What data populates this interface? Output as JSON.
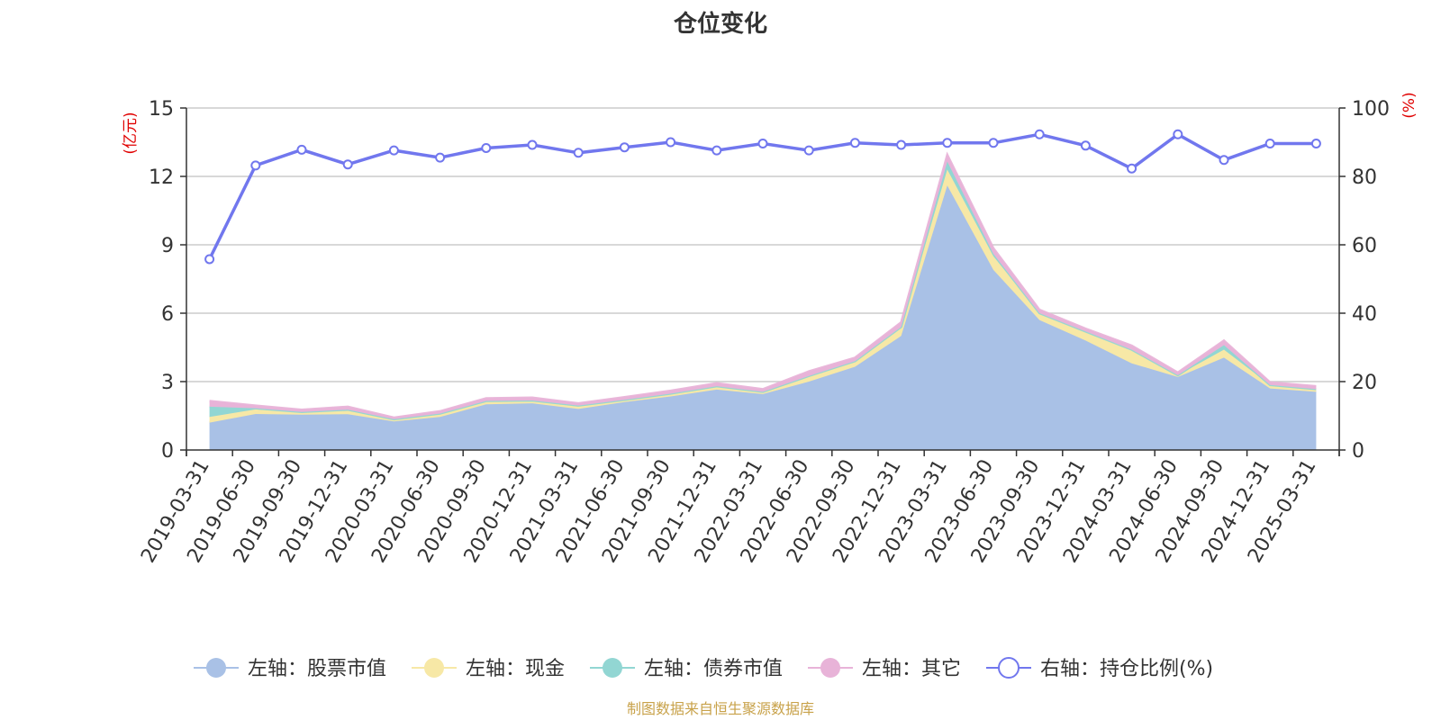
{
  "chart_data": {
    "type": "area",
    "title": "仓位变化",
    "left_axis_unit": "(亿元)",
    "right_axis_unit": "(%)",
    "ylim_left": [
      0,
      15
    ],
    "yticks_left": [
      "0",
      "3",
      "6",
      "9",
      "12",
      "15"
    ],
    "ylim_right": [
      0,
      100
    ],
    "yticks_right": [
      "0",
      "20",
      "40",
      "60",
      "80",
      "100"
    ],
    "grid": true,
    "legend_position": "bottom",
    "categories": [
      "2019-03-31",
      "2019-06-30",
      "2019-09-30",
      "2019-12-31",
      "2020-03-31",
      "2020-06-30",
      "2020-09-30",
      "2020-12-31",
      "2021-03-31",
      "2021-06-30",
      "2021-09-30",
      "2021-12-31",
      "2022-03-31",
      "2022-06-30",
      "2022-09-30",
      "2022-12-31",
      "2023-03-31",
      "2023-06-30",
      "2023-09-30",
      "2023-12-31",
      "2024-03-31",
      "2024-06-30",
      "2024-09-30",
      "2024-12-31",
      "2025-03-31"
    ],
    "series": [
      {
        "name": "左轴：股票市值",
        "axis": "left",
        "stacked": true,
        "color": "#a9c1e6",
        "values": [
          1.2,
          1.58,
          1.55,
          1.57,
          1.25,
          1.45,
          2.0,
          2.05,
          1.8,
          2.1,
          2.35,
          2.65,
          2.45,
          3.0,
          3.65,
          5.0,
          11.6,
          7.9,
          5.7,
          4.8,
          3.8,
          3.2,
          4.05,
          2.7,
          2.55
        ]
      },
      {
        "name": "左轴：现金",
        "axis": "left",
        "stacked": true,
        "color": "#f7e8a6",
        "values": [
          0.25,
          0.2,
          0.1,
          0.15,
          0.1,
          0.15,
          0.15,
          0.12,
          0.15,
          0.1,
          0.12,
          0.15,
          0.1,
          0.25,
          0.25,
          0.4,
          0.7,
          0.6,
          0.3,
          0.4,
          0.6,
          0.08,
          0.35,
          0.15,
          0.12
        ]
      },
      {
        "name": "左轴：债券市值",
        "axis": "left",
        "stacked": true,
        "color": "#92d6d3",
        "values": [
          0.45,
          0.05,
          0.02,
          0.05,
          0.0,
          0.0,
          0.0,
          0.0,
          0.0,
          0.0,
          0.0,
          0.0,
          0.0,
          0.0,
          0.0,
          0.0,
          0.35,
          0.1,
          0.0,
          0.0,
          0.0,
          0.0,
          0.2,
          0.0,
          0.0
        ]
      },
      {
        "name": "左轴：其它",
        "axis": "left",
        "stacked": true,
        "color": "#e8b3d8",
        "values": [
          0.25,
          0.12,
          0.1,
          0.13,
          0.07,
          0.1,
          0.12,
          0.13,
          0.1,
          0.12,
          0.13,
          0.13,
          0.12,
          0.2,
          0.15,
          0.2,
          0.3,
          0.25,
          0.15,
          0.12,
          0.18,
          0.12,
          0.2,
          0.12,
          0.13
        ]
      },
      {
        "name": "右轴：持仓比例(%)",
        "axis": "right",
        "type": "line",
        "color": "#7177ee",
        "values": [
          55.8,
          83.2,
          87.8,
          83.5,
          87.6,
          85.5,
          88.3,
          89.2,
          86.9,
          88.5,
          90.0,
          87.6,
          89.6,
          87.6,
          89.8,
          89.2,
          89.8,
          89.8,
          92.3,
          89.0,
          82.3,
          92.3,
          84.8,
          89.6,
          89.6
        ]
      }
    ],
    "source_note": "制图数据来自恒生聚源数据库"
  }
}
